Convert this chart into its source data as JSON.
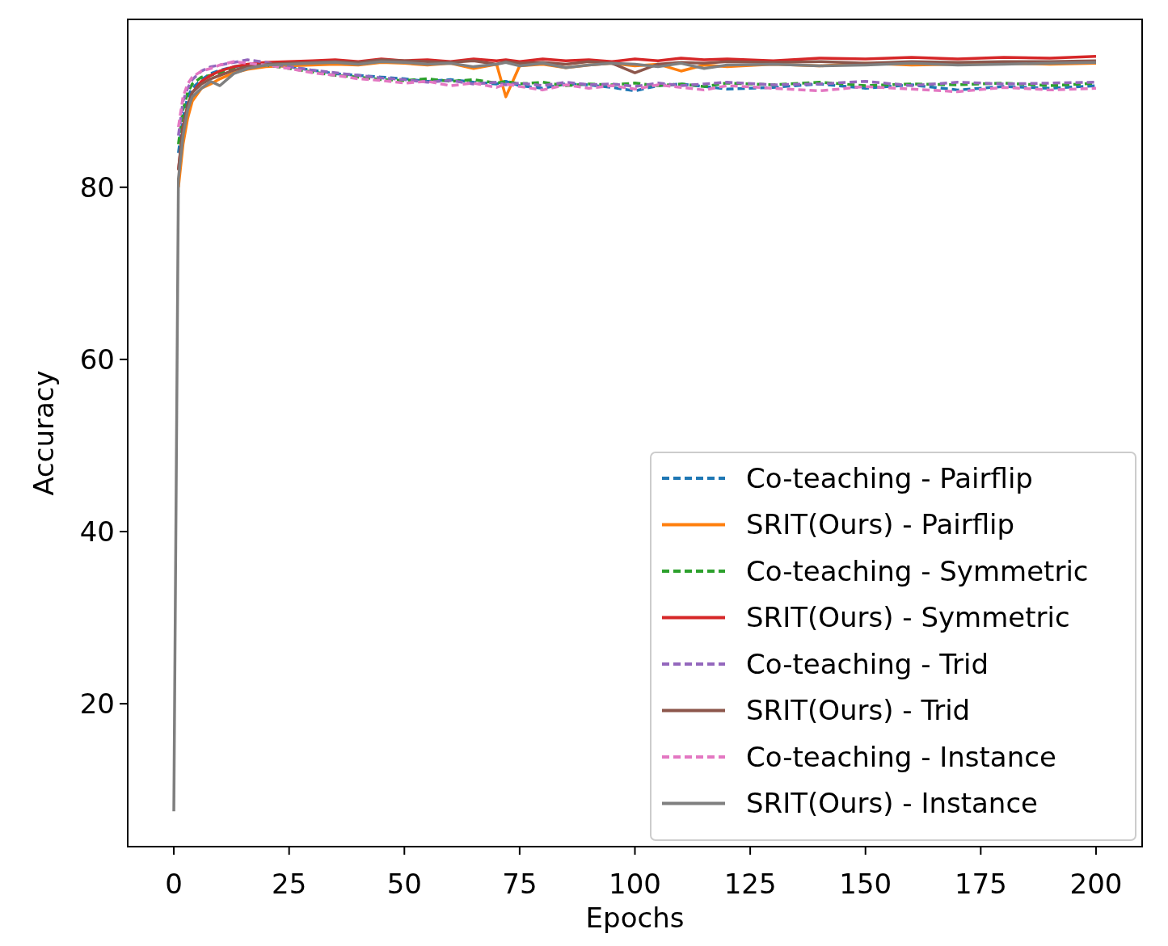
{
  "chart_data": {
    "type": "line",
    "xlabel": "Epochs",
    "ylabel": "Accuracy",
    "xlim": [
      -10,
      210
    ],
    "ylim": [
      3.4,
      99.5
    ],
    "xticks": [
      0,
      25,
      50,
      75,
      100,
      125,
      150,
      175,
      200
    ],
    "yticks": [
      20,
      40,
      60,
      80
    ],
    "grid": false,
    "legend": "bottom right",
    "x": [
      0,
      1,
      2,
      3,
      4,
      6,
      8,
      10,
      13,
      16,
      20,
      25,
      30,
      35,
      40,
      45,
      50,
      55,
      60,
      65,
      70,
      72,
      75,
      80,
      85,
      90,
      95,
      100,
      105,
      110,
      115,
      120,
      130,
      140,
      150,
      160,
      170,
      180,
      190,
      200
    ],
    "series": [
      {
        "name": "Co-teaching - Pairflip",
        "color": "#1f77b4",
        "line_style": "dashed",
        "values": [
          null,
          84,
          88,
          90.5,
          91.5,
          92.5,
          93.2,
          93.6,
          94,
          94.2,
          94.3,
          94,
          93.6,
          93.2,
          93,
          92.8,
          92.6,
          92.3,
          92.5,
          92.2,
          92,
          92.3,
          91.8,
          91.5,
          92,
          91.9,
          91.6,
          91.2,
          91.8,
          92,
          91.7,
          91.4,
          91.6,
          92,
          91.5,
          91.9,
          91.3,
          91.7,
          91.5,
          91.8
        ]
      },
      {
        "name": "SRIT(Ours) - Pairflip",
        "color": "#ff7f0e",
        "line_style": "solid",
        "values": [
          null,
          80,
          85,
          88,
          90,
          91.5,
          92,
          92.6,
          93.3,
          93.7,
          94,
          94.1,
          94.2,
          94.3,
          94.2,
          94.5,
          94.4,
          94.2,
          94.4,
          93.8,
          94.3,
          90.5,
          94.1,
          94.3,
          93.9,
          94.2,
          94.4,
          94.1,
          94.3,
          93.5,
          94.2,
          94,
          94.3,
          94.1,
          94.4,
          94.2,
          94.3,
          94.4,
          94.3,
          94.4
        ]
      },
      {
        "name": "Co-teaching - Symmetric",
        "color": "#2ca02c",
        "line_style": "dashed",
        "values": [
          null,
          85,
          89,
          91,
          92,
          92.8,
          93,
          93.3,
          93.8,
          94,
          94.2,
          93.8,
          93.4,
          93,
          92.8,
          92.5,
          92.4,
          92.6,
          92.3,
          92.5,
          92.1,
          92.3,
          92,
          92.2,
          91.8,
          92,
          91.9,
          92.1,
          91.8,
          92,
          91.7,
          92.1,
          91.9,
          92.2,
          91.8,
          92,
          91.9,
          92.1,
          91.8,
          92.1
        ]
      },
      {
        "name": "SRIT(Ours) - Symmetric",
        "color": "#d62728",
        "line_style": "solid",
        "values": [
          null,
          82,
          87,
          89.5,
          91,
          92.3,
          93,
          93.5,
          94,
          94.3,
          94.5,
          94.6,
          94.7,
          94.8,
          94.6,
          94.9,
          94.7,
          94.8,
          94.6,
          94.9,
          94.7,
          94.8,
          94.6,
          94.9,
          94.7,
          94.8,
          94.6,
          94.9,
          94.7,
          95,
          94.8,
          94.9,
          94.7,
          95,
          94.9,
          95.1,
          94.9,
          95.1,
          95,
          95.2
        ]
      },
      {
        "name": "Co-teaching - Trid",
        "color": "#9467bd",
        "line_style": "dashed",
        "values": [
          null,
          86,
          90,
          91.5,
          92.5,
          93.5,
          94,
          94.2,
          94.5,
          94.8,
          94.5,
          94,
          93.6,
          93.3,
          93,
          92.7,
          92.5,
          92.2,
          92.4,
          92,
          92.2,
          91.9,
          92.1,
          91.8,
          92.2,
          91.9,
          92,
          91.7,
          92.1,
          91.8,
          92,
          92.2,
          91.9,
          92,
          92.3,
          91.8,
          92.2,
          92,
          92.1,
          92.2
        ]
      },
      {
        "name": "SRIT(Ours) - Trid",
        "color": "#8c564b",
        "line_style": "solid",
        "values": [
          null,
          82,
          87,
          89.5,
          91,
          92,
          92.6,
          93,
          93.6,
          94,
          94.3,
          94.4,
          94.5,
          94.6,
          94.5,
          94.8,
          94.7,
          94.6,
          94.5,
          94.7,
          94.3,
          94.6,
          94.4,
          94.5,
          94.3,
          94.6,
          94.4,
          93.3,
          94.3,
          94.5,
          94.4,
          94.6,
          94.5,
          94.6,
          94.4,
          94.6,
          94.5,
          94.6,
          94.6,
          94.7
        ]
      },
      {
        "name": "Co-teaching - Instance",
        "color": "#e377c2",
        "line_style": "dashed",
        "values": [
          null,
          87,
          90.5,
          92,
          92.8,
          93.5,
          93.8,
          94.2,
          94.6,
          94.4,
          94.2,
          93.8,
          93.3,
          93,
          92.6,
          92.4,
          92.1,
          92.3,
          91.8,
          92.1,
          91.6,
          92,
          91.7,
          91.3,
          91.9,
          91.5,
          91.8,
          91.4,
          91.9,
          91.6,
          91.3,
          91.8,
          91.5,
          91.2,
          91.7,
          91.4,
          91.1,
          91.6,
          91.3,
          91.5
        ]
      },
      {
        "name": "SRIT(Ours) - Instance",
        "color": "#7f7f7f",
        "line_style": "solid",
        "values": [
          7.5,
          81,
          86,
          89,
          90.5,
          91.5,
          92.3,
          91.8,
          93.2,
          93.8,
          94.2,
          94.3,
          94.4,
          94.5,
          94.3,
          94.6,
          94.5,
          94.3,
          94.4,
          94,
          94.3,
          94.5,
          94.1,
          94.4,
          93.9,
          94.2,
          94.4,
          94.3,
          94,
          94.4,
          93.8,
          94.2,
          94.3,
          94.1,
          94.2,
          94.4,
          94.2,
          94.3,
          94.4,
          94.5
        ]
      }
    ]
  }
}
